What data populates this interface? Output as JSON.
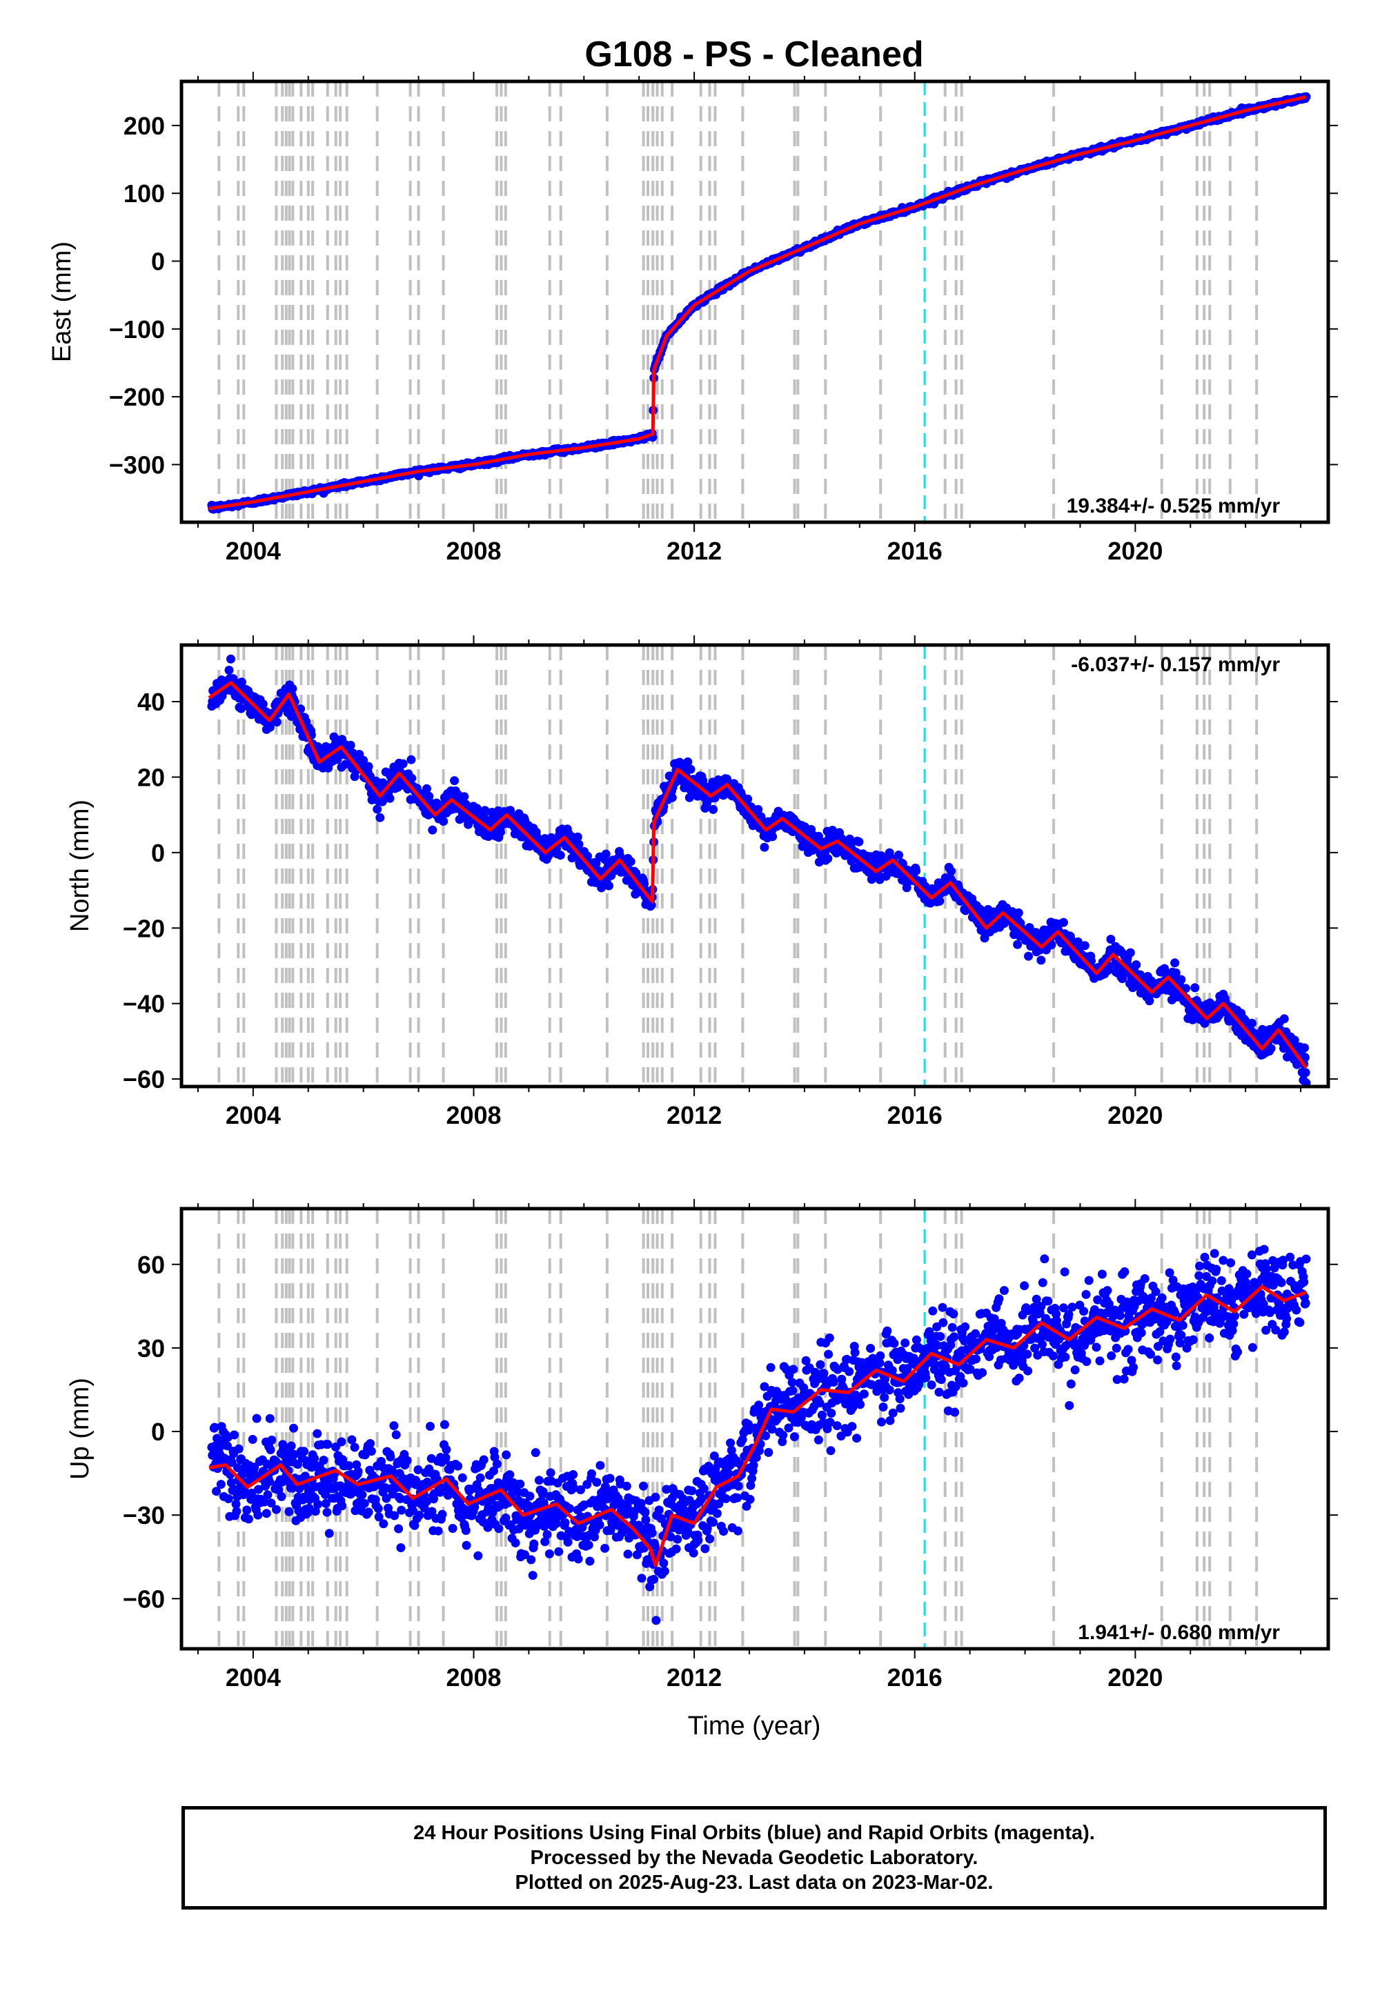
{
  "title": "G108  - PS - Cleaned",
  "xlabel": "Time (year)",
  "caption": {
    "line1": "24 Hour Positions Using Final Orbits (blue) and Rapid Orbits (magenta).",
    "line2": "Processed by the Nevada Geodetic Laboratory.",
    "line3": "Plotted on 2025-Aug-23. Last data on 2023-Mar-02."
  },
  "colors": {
    "final_orbits": "#0000ff",
    "model": "#ff0000",
    "event_lines": "#c0c0c0",
    "marker_line": "#00e5ee"
  },
  "chart_data": [
    {
      "type": "scatter",
      "ylabel": "East (mm)",
      "rate": "19.384+/- 0.525 mm/yr",
      "xlim": [
        2002.7,
        2023.5
      ],
      "ylim": [
        -385,
        265
      ],
      "xticks": [
        2004,
        2008,
        2012,
        2016,
        2020
      ],
      "yticks": [
        -300,
        -200,
        -100,
        0,
        100,
        200
      ],
      "ytick_labels": [
        "−300",
        "−200",
        "−100",
        "0",
        "100",
        "200"
      ],
      "grid": false,
      "series": [
        {
          "x": [
            2003.2,
            2004.0,
            2005.0,
            2006.0,
            2007.0,
            2008.0,
            2009.0,
            2010.0,
            2011.0,
            2011.25,
            2011.27,
            2011.5,
            2012.0,
            2013.0,
            2014.0,
            2015.0,
            2016.0,
            2017.0,
            2018.0,
            2019.0,
            2020.0,
            2021.0,
            2022.0,
            2023.1
          ],
          "y": [
            -365,
            -355,
            -340,
            -325,
            -310,
            -300,
            -285,
            -275,
            -262,
            -255,
            -160,
            -110,
            -65,
            -15,
            20,
            55,
            80,
            110,
            135,
            158,
            178,
            200,
            222,
            242
          ]
        }
      ]
    },
    {
      "type": "scatter",
      "ylabel": "North (mm)",
      "rate": "-6.037+/- 0.157 mm/yr",
      "xlim": [
        2002.7,
        2023.5
      ],
      "ylim": [
        -62,
        55
      ],
      "xticks": [
        2004,
        2008,
        2012,
        2016,
        2020
      ],
      "yticks": [
        -60,
        -40,
        -20,
        0,
        20,
        40
      ],
      "ytick_labels": [
        "−60",
        "−40",
        "−20",
        "0",
        "20",
        "40"
      ],
      "grid": false,
      "series": [
        {
          "x": [
            2003.2,
            2003.6,
            2004.3,
            2004.65,
            2005.2,
            2005.6,
            2006.3,
            2006.65,
            2007.3,
            2007.6,
            2008.3,
            2008.6,
            2009.3,
            2009.65,
            2010.3,
            2010.65,
            2011.24,
            2011.27,
            2011.7,
            2012.3,
            2012.6,
            2013.3,
            2013.6,
            2014.3,
            2014.6,
            2015.3,
            2015.6,
            2016.3,
            2016.65,
            2017.3,
            2017.6,
            2018.3,
            2018.6,
            2019.3,
            2019.6,
            2020.3,
            2020.6,
            2021.3,
            2021.6,
            2022.3,
            2022.6,
            2023.1
          ],
          "y": [
            41,
            45,
            35,
            42,
            24,
            28,
            15,
            21,
            10,
            14,
            6,
            10,
            0,
            4,
            -7,
            -2,
            -13,
            8,
            22,
            15,
            18,
            6,
            9,
            1,
            3,
            -5,
            -2,
            -12,
            -8,
            -20,
            -16,
            -25,
            -21,
            -32,
            -27,
            -37,
            -33,
            -44,
            -40,
            -52,
            -47,
            -57
          ]
        }
      ]
    },
    {
      "type": "scatter",
      "ylabel": "Up (mm)",
      "rate": "1.941+/- 0.680 mm/yr",
      "xlim": [
        2002.7,
        2023.5
      ],
      "ylim": [
        -78,
        80
      ],
      "xticks": [
        2004,
        2008,
        2012,
        2016,
        2020
      ],
      "yticks": [
        -60,
        -30,
        0,
        30,
        60
      ],
      "ytick_labels": [
        "−60",
        "−30",
        "0",
        "30",
        "60"
      ],
      "grid": false,
      "series": [
        {
          "x": [
            2003.2,
            2003.5,
            2003.9,
            2004.5,
            2004.8,
            2005.5,
            2005.9,
            2006.5,
            2006.9,
            2007.5,
            2007.9,
            2008.5,
            2008.9,
            2009.5,
            2009.9,
            2010.5,
            2010.9,
            2011.2,
            2011.3,
            2011.6,
            2012.0,
            2012.4,
            2012.8,
            2013.1,
            2013.4,
            2013.8,
            2014.3,
            2014.8,
            2015.3,
            2015.8,
            2016.3,
            2016.8,
            2017.3,
            2017.8,
            2018.3,
            2018.8,
            2019.3,
            2019.8,
            2020.3,
            2020.8,
            2021.3,
            2021.8,
            2022.3,
            2022.7,
            2023.1
          ],
          "y": [
            -13,
            -12,
            -20,
            -12,
            -19,
            -14,
            -19,
            -16,
            -24,
            -17,
            -26,
            -21,
            -30,
            -26,
            -33,
            -28,
            -35,
            -42,
            -48,
            -30,
            -33,
            -20,
            -16,
            -5,
            8,
            7,
            15,
            14,
            22,
            18,
            28,
            24,
            33,
            30,
            39,
            33,
            41,
            37,
            44,
            40,
            49,
            43,
            52,
            47,
            50
          ]
        }
      ]
    }
  ],
  "event_years": [
    2003.38,
    2003.73,
    2003.83,
    2004.42,
    2004.53,
    2004.6,
    2004.66,
    2004.72,
    2004.87,
    2005.0,
    2005.08,
    2005.35,
    2005.5,
    2005.58,
    2005.7,
    2006.25,
    2006.85,
    2007.0,
    2007.45,
    2008.42,
    2008.5,
    2008.58,
    2009.38,
    2009.58,
    2010.42,
    2011.08,
    2011.16,
    2011.25,
    2011.33,
    2011.42,
    2011.6,
    2012.12,
    2012.28,
    2012.38,
    2012.88,
    2013.82,
    2013.88,
    2014.38,
    2015.38,
    2016.55,
    2016.75,
    2016.85,
    2018.52,
    2020.48,
    2021.12,
    2021.25,
    2021.35,
    2021.72,
    2022.2
  ],
  "marker_year": 2016.18
}
